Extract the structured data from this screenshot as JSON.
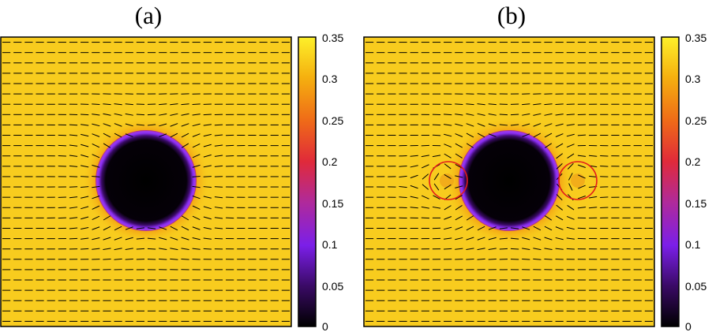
{
  "chart_data": [
    {
      "type": "heatmap",
      "panel_label": "(a)",
      "colorbar": {
        "colormap": [
          "#000000",
          "#7b1fe8",
          "#e02a3a",
          "#f5a00f",
          "#fdf02a"
        ],
        "range": [
          0,
          0.35
        ],
        "ticks": [
          "0.35",
          "0.3",
          "0.25",
          "0.2",
          "0.15",
          "0.1",
          "0.05",
          "0"
        ]
      },
      "field": {
        "background_value": 0.33,
        "particle": {
          "center": [
            0.49,
            0.5
          ],
          "radius": 0.175,
          "inner_value": 0.0,
          "rim_value": 0.12
        },
        "halo_value": 0.26
      },
      "director_field": "uniform-horizontal-with-distortion-around-particle",
      "defects": []
    },
    {
      "type": "heatmap",
      "panel_label": "(b)",
      "colorbar": {
        "colormap": [
          "#000000",
          "#7b1fe8",
          "#e02a3a",
          "#f5a00f",
          "#fdf02a"
        ],
        "range": [
          0,
          0.35
        ],
        "ticks": [
          "0.35",
          "0.3",
          "0.25",
          "0.2",
          "0.15",
          "0.1",
          "0.05",
          "0"
        ]
      },
      "field": {
        "background_value": 0.33,
        "particle": {
          "center": [
            0.49,
            0.5
          ],
          "radius": 0.175,
          "inner_value": 0.0,
          "rim_value": 0.12
        },
        "halo_value": 0.26
      },
      "director_field": "uniform-horizontal-with-two-point-defects",
      "defects": [
        {
          "position": [
            0.28,
            0.5
          ]
        },
        {
          "position": [
            0.74,
            0.5
          ]
        }
      ]
    }
  ]
}
